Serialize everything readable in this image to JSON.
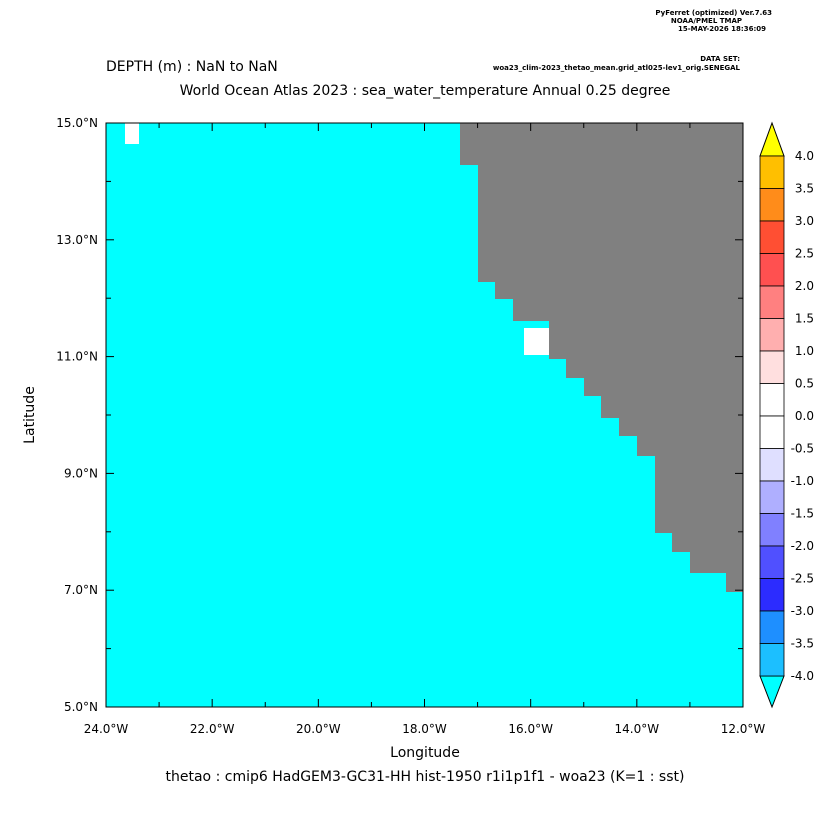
{
  "header": {
    "program": "PyFerret (optimized) Ver.7.63",
    "org": "NOAA/PMEL TMAP",
    "date": "15-MAY-2026 18:36:09",
    "dataset_label": "DATA SET:",
    "dataset": "woa23_clim-2023_thetao_mean.grid_atl025-lev1_orig.SENEGAL"
  },
  "chart_data": {
    "type": "shade",
    "subtitle": "DEPTH (m) : NaN to NaN",
    "title": "World Ocean Atlas 2023 : sea_water_temperature Annual  0.25 degree",
    "x_label": "Longitude",
    "y_label": "Latitude",
    "caption": "thetao : cmip6 HadGEM3-GC31-HH hist-1950 r1i1p1f1 - woa23  (K=1 : sst)",
    "xlim": [
      -24,
      -12
    ],
    "ylim": [
      5,
      15
    ],
    "xticks": [
      {
        "value": -24,
        "label": "24.0°W"
      },
      {
        "value": -22,
        "label": "22.0°W"
      },
      {
        "value": -20,
        "label": "20.0°W"
      },
      {
        "value": -18,
        "label": "18.0°W"
      },
      {
        "value": -16,
        "label": "16.0°W"
      },
      {
        "value": -14,
        "label": "14.0°W"
      },
      {
        "value": -12,
        "label": "12.0°W"
      }
    ],
    "xminor": [
      -23,
      -21,
      -19,
      -17,
      -15,
      -13
    ],
    "yticks": [
      {
        "value": 5,
        "label": "5.0°N"
      },
      {
        "value": 7,
        "label": "7.0°N"
      },
      {
        "value": 9,
        "label": "9.0°N"
      },
      {
        "value": 11,
        "label": "11.0°N"
      },
      {
        "value": 13,
        "label": "13.0°N"
      },
      {
        "value": 15,
        "label": "15.0°N"
      }
    ],
    "yminor": [
      6,
      8,
      10,
      12,
      14
    ],
    "field_color": "#00ffff",
    "land_color": "#808080",
    "missing_color": "#ffffff",
    "colorbar": {
      "levels": [
        {
          "value": 4,
          "label": "4.0"
        },
        {
          "value": 3.5,
          "label": "3.5"
        },
        {
          "value": 3,
          "label": "3.0"
        },
        {
          "value": 2.5,
          "label": "2.5"
        },
        {
          "value": 2,
          "label": "2.0"
        },
        {
          "value": 1.5,
          "label": "1.5"
        },
        {
          "value": 1,
          "label": "1.0"
        },
        {
          "value": 0.5,
          "label": "0.5"
        },
        {
          "value": 0,
          "label": "0.0"
        },
        {
          "value": -0.5,
          "label": "-0.5"
        },
        {
          "value": -1,
          "label": "-1.0"
        },
        {
          "value": -1.5,
          "label": "-1.5"
        },
        {
          "value": -2,
          "label": "-2.0"
        },
        {
          "value": -2.5,
          "label": "-2.5"
        },
        {
          "value": -3,
          "label": "-3.0"
        },
        {
          "value": -3.5,
          "label": "-3.5"
        },
        {
          "value": -4,
          "label": "-4.0"
        }
      ],
      "colors": [
        "#ffbf00",
        "#ff8c1a",
        "#ff4f33",
        "#ff5050",
        "#ff8080",
        "#ffafaf",
        "#ffdfdf",
        "#ffffff",
        "#ffffff",
        "#dfdfff",
        "#afafff",
        "#8080ff",
        "#5050ff",
        "#2c2cff",
        "#1e8fff",
        "#1cbfff"
      ],
      "over_color": "#ffff00",
      "under_color": "#00ffff"
    }
  }
}
